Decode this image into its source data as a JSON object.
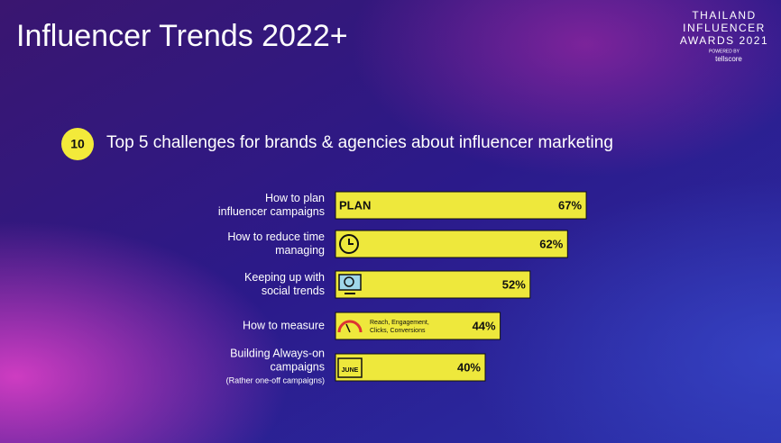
{
  "title": "Influencer Trends 2022+",
  "logo": {
    "lines": [
      "THAILAND",
      "INFLUENCER",
      "AWARDS 2021"
    ],
    "powered": "POWERED BY",
    "brand": "tellscore"
  },
  "chart_data": {
    "type": "bar",
    "orientation": "horizontal",
    "badge": "10",
    "title": "Top 5 challenges for brands & agencies about influencer marketing",
    "categories": [
      [
        "How to plan",
        "influencer campaigns"
      ],
      [
        "How to reduce time",
        "managing"
      ],
      [
        "Keeping up with",
        "social trends"
      ],
      [
        "How to measure"
      ],
      [
        "Building Always-on",
        "campaigns"
      ]
    ],
    "category_note": "(Rather one-off campaigns)",
    "values": [
      67,
      62,
      52,
      44,
      40
    ],
    "value_labels": [
      "67%",
      "62%",
      "52%",
      "44%",
      "40%"
    ],
    "icon_labels": [
      [
        "PLAN"
      ],
      [],
      [],
      [
        "Reach, Engagement,",
        "Clicks, Conversions"
      ],
      [
        "JUNE"
      ]
    ],
    "color": "#eee83c"
  }
}
